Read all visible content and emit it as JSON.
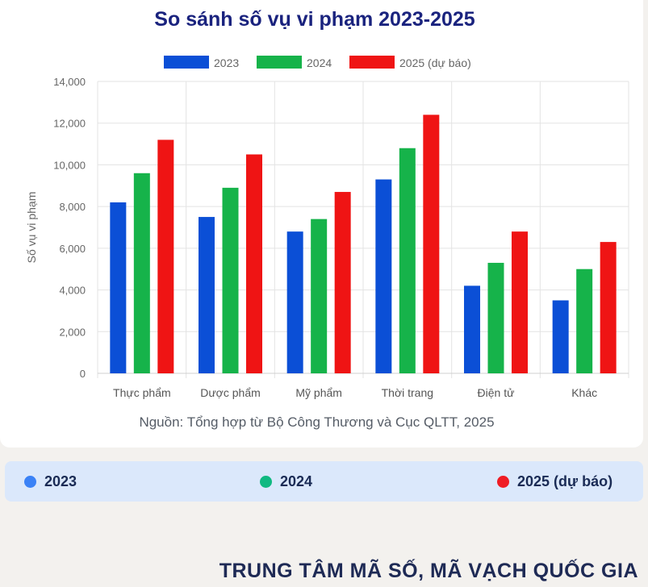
{
  "chart_data": {
    "type": "bar",
    "title": "So sánh số vụ vi phạm 2023-2025",
    "ylabel": "Số vụ vi phạm",
    "xlabel": "",
    "ylim": [
      0,
      14000
    ],
    "yticks": [
      "0",
      "2,000",
      "4,000",
      "6,000",
      "8,000",
      "10,000",
      "12,000",
      "14,000"
    ],
    "categories": [
      "Thực phẩm",
      "Dược phẩm",
      "Mỹ phẩm",
      "Thời trang",
      "Điện tử",
      "Khác"
    ],
    "series": [
      {
        "name": "2023",
        "color": "#0b4fd6",
        "values": [
          8200,
          7500,
          6800,
          9300,
          4200,
          3500
        ]
      },
      {
        "name": "2024",
        "color": "#16b34a",
        "values": [
          9600,
          8900,
          7400,
          10800,
          5300,
          5000
        ]
      },
      {
        "name": "2025 (dự báo)",
        "color": "#ef1414",
        "values": [
          11200,
          10500,
          8700,
          12400,
          6800,
          6300
        ]
      }
    ],
    "grid": true,
    "legend_position": "top"
  },
  "source_note": "Nguồn: Tổng hợp từ Bộ Công Thương và Cục QLTT, 2025",
  "bottom_legend": [
    {
      "label": "2023",
      "color": "#3b82f6"
    },
    {
      "label": "2024",
      "color": "#10b981"
    },
    {
      "label": "2025 (dự báo)",
      "color": "#ef1c24"
    }
  ],
  "footer_title": "TRUNG TÂM MÃ SỐ, MÃ VẠCH QUỐC GIA"
}
